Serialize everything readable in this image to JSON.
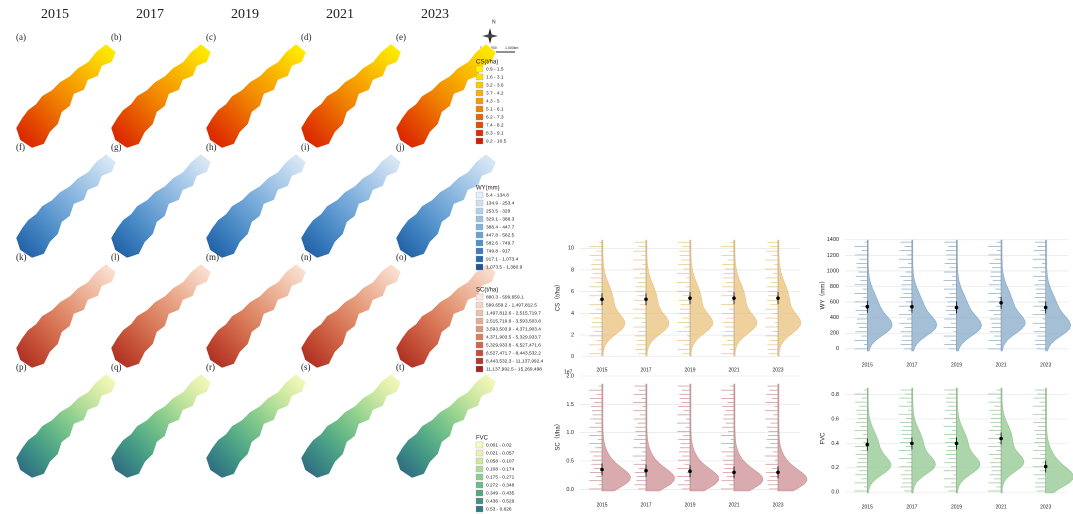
{
  "maps": {
    "years": [
      "2015",
      "2017",
      "2019",
      "2021",
      "2023"
    ],
    "panels": [
      [
        "(a)",
        "(b)",
        "(c)",
        "(d)",
        "(e)"
      ],
      [
        "(f)",
        "(g)",
        "(h)",
        "(i)",
        "(j)"
      ],
      [
        "(k)",
        "(l)",
        "(m)",
        "(n)",
        "(o)"
      ],
      [
        "(p)",
        "(q)",
        "(r)",
        "(s)",
        "(t)"
      ]
    ],
    "compass": {
      "north": "N",
      "scale": [
        "0",
        "500",
        "1,000km"
      ]
    },
    "legends": [
      {
        "title": "CS(t/ha)",
        "classes": [
          "0.9 - 1.5",
          "1.6 - 3.1",
          "3.2 - 3.6",
          "3.7 - 4.2",
          "4.3 - 5",
          "5.1 - 6.1",
          "6.2 - 7.3",
          "7.4 - 8.2",
          "8.3 - 9.1",
          "9.2 - 10.5"
        ],
        "colors": [
          "#fff200",
          "#fde000",
          "#fbc800",
          "#f8b000",
          "#f59a00",
          "#f08000",
          "#ea6400",
          "#e44a00",
          "#dd3000",
          "#d61a00"
        ]
      },
      {
        "title": "WY(mm)",
        "classes": [
          "5.4 - 134.8",
          "134.9 - 253.4",
          "253.5 - 329",
          "329.1 - 388.3",
          "388.4 - 447.7",
          "447.8 - 582.5",
          "582.6 - 749.7",
          "749.8 - 917",
          "917.1 - 1,073.4",
          "1,073.5 - 1,380.9"
        ],
        "colors": [
          "#e4eef8",
          "#cde0f2",
          "#b4d1ec",
          "#9cc2e5",
          "#83b2dd",
          "#6aa1d4",
          "#5190c9",
          "#3b7ebd",
          "#2a6aae",
          "#1b569c"
        ]
      },
      {
        "title": "SC(t/ha)",
        "classes": [
          "880.3 - 599,659.1",
          "599,659.2 - 1,497,812.5",
          "1,497,812.6 - 2,515,719.7",
          "2,515,719.8 - 3,593,503.8",
          "3,593,503.9 - 4,371,903.4",
          "4,371,903.5 - 5,329,933.7",
          "5,329,933.8 - 6,527,471.6",
          "6,527,471.7 - 8,443,532.2",
          "8,443,532.3 - 11,137,992.4",
          "11,137,992.5 - 15,269,498"
        ],
        "colors": [
          "#fbe8dc",
          "#f6d5c3",
          "#f0c0a8",
          "#eaab8e",
          "#e39575",
          "#da7e5e",
          "#d06749",
          "#c45037",
          "#b63a29",
          "#a5261e"
        ]
      },
      {
        "title": "FVC",
        "classes": [
          "0.001 - 0.02",
          "0.021 - 0.057",
          "0.058 - 0.107",
          "0.108 - 0.174",
          "0.175 - 0.271",
          "0.272 - 0.348",
          "0.349 - 0.435",
          "0.436 - 0.529",
          "0.53 - 0.626",
          "0.627 - 0.804"
        ],
        "colors": [
          "#fbf9c2",
          "#e8f2b0",
          "#cde8a2",
          "#aedc98",
          "#8ccd8e",
          "#6cbc88",
          "#52a886",
          "#3f9185",
          "#347883",
          "#2c5e7c"
        ]
      }
    ]
  },
  "chart_data": [
    {
      "type": "violin",
      "ylabel": "CS（t/ha）",
      "categories": [
        "2015",
        "2017",
        "2019",
        "2021",
        "2023"
      ],
      "values": [
        5.3,
        5.3,
        5.4,
        5.4,
        5.4
      ],
      "color": "#e9c27e",
      "ylim": [
        -0.3,
        11.5
      ],
      "yticks": [
        0,
        2,
        4,
        6,
        8,
        10
      ],
      "grid": true
    },
    {
      "type": "violin",
      "ylabel": "WY（mm）",
      "categories": [
        "2015",
        "2017",
        "2019",
        "2021",
        "2023"
      ],
      "values": [
        540,
        540,
        530,
        590,
        530
      ],
      "color": "#86a9c8",
      "ylim": [
        -80,
        1500
      ],
      "yticks": [
        0,
        200,
        400,
        600,
        800,
        1000,
        1200,
        1400
      ],
      "grid": true
    },
    {
      "type": "violin",
      "ylabel": "SC（t/ha）",
      "offset_label": "1e7",
      "categories": [
        "2015",
        "2017",
        "2019",
        "2021",
        "2023"
      ],
      "values": [
        3500000,
        3300000,
        3200000,
        3000000,
        3000000
      ],
      "color": "#cc8f93",
      "ylim": [
        -1000000,
        20000000
      ],
      "yticks": [
        {
          "value": 0,
          "label": "0.0"
        },
        {
          "value": 5000000,
          "label": "0.5"
        },
        {
          "value": 10000000,
          "label": "1.0"
        },
        {
          "value": 15000000,
          "label": "1.5"
        },
        {
          "value": 20000000,
          "label": "2.0"
        }
      ],
      "grid": true
    },
    {
      "type": "violin",
      "ylabel": "FVC",
      "categories": [
        "2015",
        "2017",
        "2019",
        "2021",
        "2023"
      ],
      "values": [
        0.39,
        0.4,
        0.4,
        0.44,
        0.21
      ],
      "color": "#92c78f",
      "ylim": [
        -0.04,
        0.92
      ],
      "yticks": [
        {
          "value": 0,
          "label": "0.0"
        },
        0.2,
        0.4,
        0.6,
        0.8
      ],
      "grid": true
    }
  ]
}
